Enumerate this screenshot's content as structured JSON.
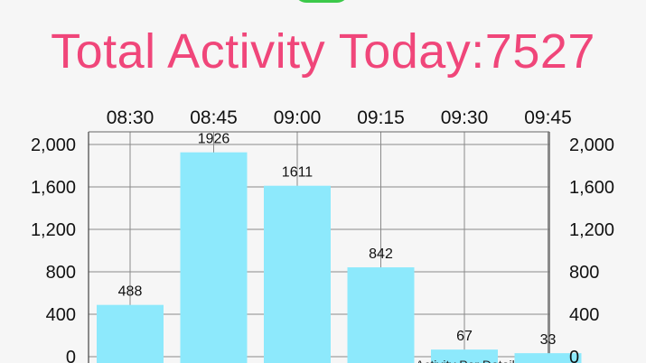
{
  "title": "Total Activity Today:7527",
  "legend_label": "Activity Per Detail",
  "colors": {
    "title": "#f0467a",
    "bar": "#8de9fc",
    "accent_green": "#3cc94a"
  },
  "chart_data": {
    "type": "bar",
    "categories": [
      "08:30",
      "08:45",
      "09:00",
      "09:15",
      "09:30",
      "09:45"
    ],
    "values": [
      488,
      1926,
      1611,
      842,
      67,
      33
    ],
    "ylim": [
      0,
      2000
    ],
    "yticks": [
      0,
      400,
      800,
      1200,
      1600,
      2000
    ],
    "ytick_labels": [
      "0",
      "400",
      "800",
      "1,200",
      "1,600",
      "2,000"
    ],
    "grid": true,
    "x_axis_position": "top",
    "dual_y_axis": true
  }
}
